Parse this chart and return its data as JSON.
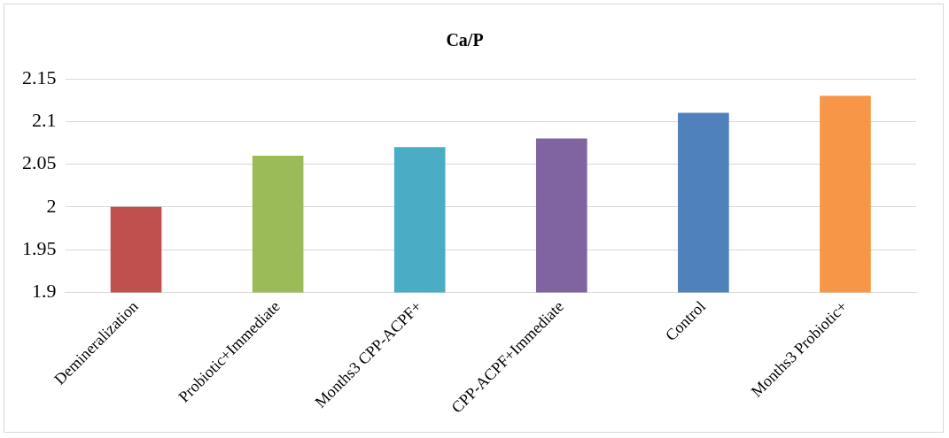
{
  "chart_data": {
    "type": "bar",
    "title": "Ca/P",
    "categories": [
      "Demineralization",
      "Probiotic+Immediate",
      "Months3 CPP-ACPF+",
      "CPP-ACPF+Immediate",
      "Control",
      "Months3 Probiotic+"
    ],
    "values": [
      2,
      2.06,
      2.07,
      2.08,
      2.11,
      2.13
    ],
    "colors": [
      "#c0504d",
      "#9bbb59",
      "#4bacc6",
      "#8064a2",
      "#4f81bd",
      "#f79646"
    ],
    "ylim": [
      1.9,
      2.15
    ],
    "yticks": [
      1.9,
      1.95,
      2,
      2.05,
      2.1,
      2.15
    ],
    "grid": "y",
    "legend": false
  }
}
